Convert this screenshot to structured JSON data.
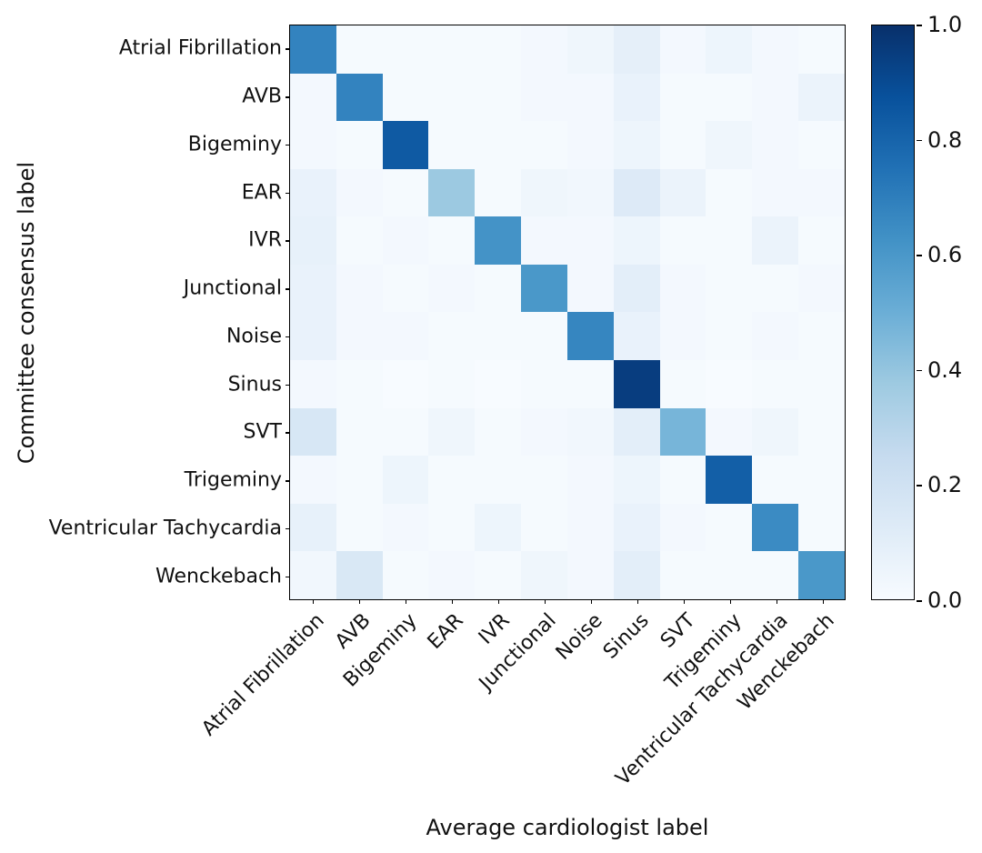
{
  "chart_data": {
    "type": "heatmap",
    "title": "",
    "xlabel": "Average cardiologist label",
    "ylabel": "Committee consensus label",
    "colormap": "Blues",
    "vmin": 0.0,
    "vmax": 1.0,
    "colorbar_ticks": [
      0.0,
      0.2,
      0.4,
      0.6,
      0.8,
      1.0
    ],
    "colorbar_tick_labels": [
      "0.0",
      "0.2",
      "0.4",
      "0.6",
      "0.8",
      "1.0"
    ],
    "categories": [
      "Atrial Fibrillation",
      "AVB",
      "Bigeminy",
      "EAR",
      "IVR",
      "Junctional",
      "Noise",
      "Sinus",
      "SVT",
      "Trigeminy",
      "Ventricular Tachycardia",
      "Wenckebach"
    ],
    "matrix": [
      [
        0.68,
        0.01,
        0.01,
        0.01,
        0.01,
        0.02,
        0.04,
        0.09,
        0.02,
        0.05,
        0.02,
        0.01
      ],
      [
        0.02,
        0.68,
        0.01,
        0.01,
        0.01,
        0.02,
        0.02,
        0.07,
        0.01,
        0.01,
        0.02,
        0.06
      ],
      [
        0.02,
        0.01,
        0.84,
        0.01,
        0.01,
        0.01,
        0.02,
        0.05,
        0.01,
        0.04,
        0.02,
        0.01
      ],
      [
        0.07,
        0.02,
        0.01,
        0.38,
        0.01,
        0.04,
        0.03,
        0.13,
        0.06,
        0.01,
        0.02,
        0.02
      ],
      [
        0.08,
        0.01,
        0.02,
        0.01,
        0.62,
        0.02,
        0.02,
        0.05,
        0.01,
        0.01,
        0.06,
        0.01
      ],
      [
        0.07,
        0.02,
        0.01,
        0.02,
        0.01,
        0.6,
        0.02,
        0.1,
        0.02,
        0.01,
        0.01,
        0.02
      ],
      [
        0.07,
        0.02,
        0.02,
        0.01,
        0.01,
        0.01,
        0.67,
        0.07,
        0.02,
        0.01,
        0.02,
        0.01
      ],
      [
        0.02,
        0.01,
        0.0,
        0.01,
        0.0,
        0.01,
        0.01,
        0.95,
        0.01,
        0.0,
        0.01,
        0.01
      ],
      [
        0.16,
        0.01,
        0.01,
        0.04,
        0.01,
        0.02,
        0.03,
        0.1,
        0.47,
        0.02,
        0.04,
        0.01
      ],
      [
        0.02,
        0.01,
        0.05,
        0.01,
        0.01,
        0.01,
        0.02,
        0.05,
        0.01,
        0.82,
        0.01,
        0.01
      ],
      [
        0.08,
        0.01,
        0.02,
        0.01,
        0.05,
        0.01,
        0.02,
        0.07,
        0.02,
        0.01,
        0.65,
        0.01
      ],
      [
        0.03,
        0.15,
        0.01,
        0.02,
        0.01,
        0.04,
        0.02,
        0.1,
        0.01,
        0.01,
        0.01,
        0.6
      ]
    ]
  },
  "colors": {
    "background": "#ffffff",
    "axis": "#000000",
    "text": "#111111",
    "colormap_low": "#f7fbff",
    "colormap_high": "#08306b"
  }
}
